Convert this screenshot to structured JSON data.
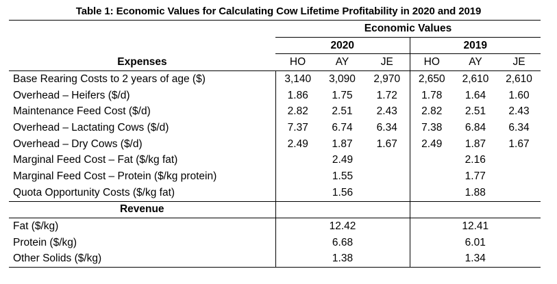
{
  "title": "Table 1: Economic Values for Calculating Cow Lifetime Profitability in 2020 and 2019",
  "header": {
    "group": "Economic Values",
    "years": [
      "2020",
      "2019"
    ],
    "expenses_label": "Expenses",
    "breeds": [
      "HO",
      "AY",
      "JE",
      "HO",
      "AY",
      "JE"
    ]
  },
  "expense_rows": [
    {
      "label": "Base Rearing Costs to 2 years of age ($)",
      "v2020": [
        "3,140",
        "3,090",
        "2,970"
      ],
      "v2019": [
        "2,650",
        "2,610",
        "2,610"
      ]
    },
    {
      "label": "Overhead – Heifers ($/d)",
      "v2020": [
        "1.86",
        "1.75",
        "1.72"
      ],
      "v2019": [
        "1.78",
        "1.64",
        "1.60"
      ]
    },
    {
      "label": "Maintenance Feed Cost ($/d)",
      "v2020": [
        "2.82",
        "2.51",
        "2.43"
      ],
      "v2019": [
        "2.82",
        "2.51",
        "2.43"
      ]
    },
    {
      "label": "Overhead – Lactating Cows ($/d)",
      "v2020": [
        "7.37",
        "6.74",
        "6.34"
      ],
      "v2019": [
        "7.38",
        "6.84",
        "6.34"
      ]
    },
    {
      "label": "Overhead – Dry Cows ($/d)",
      "v2020": [
        "2.49",
        "1.87",
        "1.67"
      ],
      "v2019": [
        "2.49",
        "1.87",
        "1.67"
      ]
    }
  ],
  "marginal_rows": [
    {
      "label": "Marginal Feed Cost – Fat ($/kg fat)",
      "v2020": "2.49",
      "v2019": "2.16"
    },
    {
      "label": "Marginal Feed Cost – Protein ($/kg protein)",
      "v2020": "1.55",
      "v2019": "1.77"
    },
    {
      "label": "Quota Opportunity Costs ($/kg fat)",
      "v2020": "1.56",
      "v2019": "1.88"
    }
  ],
  "revenue_label": "Revenue",
  "revenue_rows": [
    {
      "label": "Fat ($/kg)",
      "v2020": "12.42",
      "v2019": "12.41"
    },
    {
      "label": "Protein ($/kg)",
      "v2020": "6.68",
      "v2019": "6.01"
    },
    {
      "label": "Other Solids ($/kg)",
      "v2020": "1.38",
      "v2019": "1.34"
    }
  ]
}
